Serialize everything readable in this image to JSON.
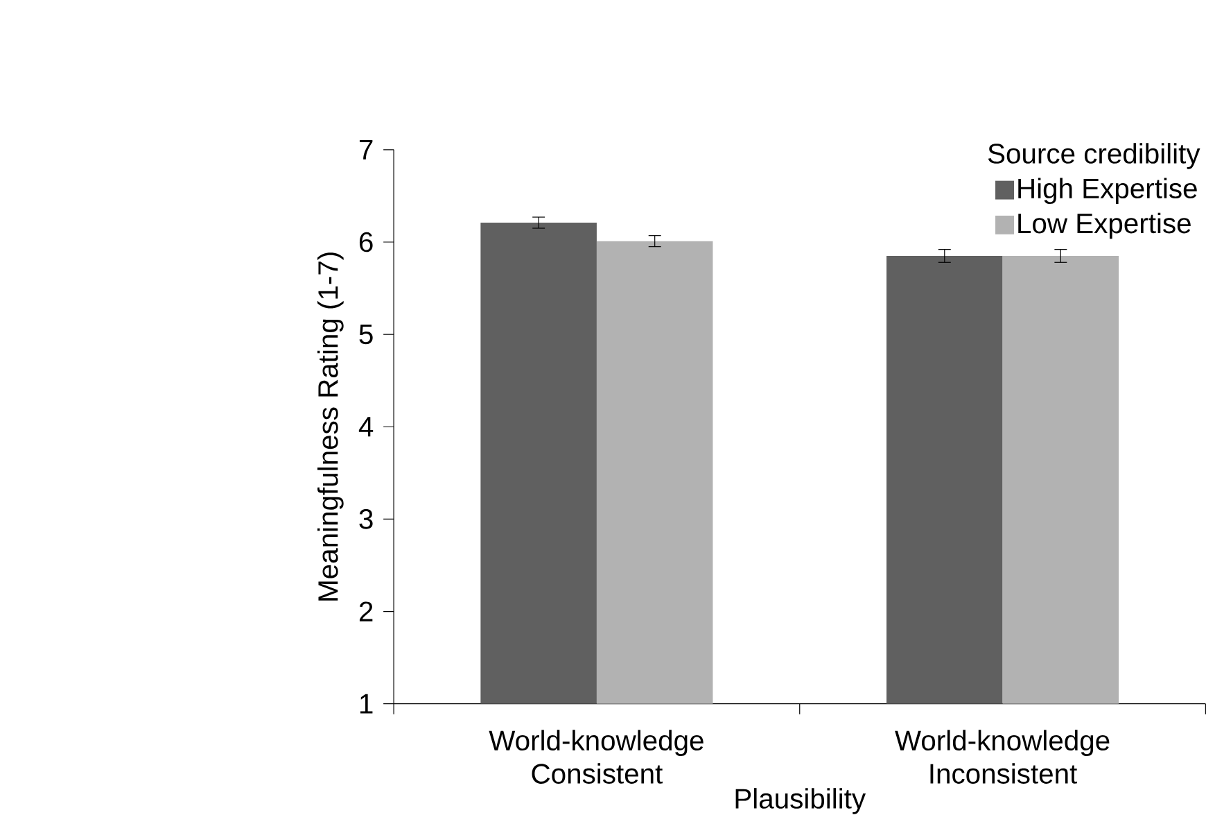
{
  "chart_data": {
    "type": "bar",
    "xlabel": "Plausibility",
    "ylabel": "Meaningfulness Rating (1-7)",
    "legend_title": "Source credibility",
    "categories": [
      "World-knowledge Consistent",
      "World-knowledge Inconsistent"
    ],
    "series": [
      {
        "name": "High Expertise",
        "color": "#606060",
        "values": [
          6.21,
          5.85
        ],
        "errors": [
          0.06,
          0.07
        ]
      },
      {
        "name": "Low Expertise",
        "color": "#b2b2b2",
        "values": [
          6.01,
          5.85
        ],
        "errors": [
          0.06,
          0.07
        ]
      }
    ],
    "ylim": [
      1,
      7
    ],
    "yticks": [
      1,
      2,
      3,
      4,
      5,
      6,
      7
    ],
    "legend": "top right",
    "grid": false
  }
}
